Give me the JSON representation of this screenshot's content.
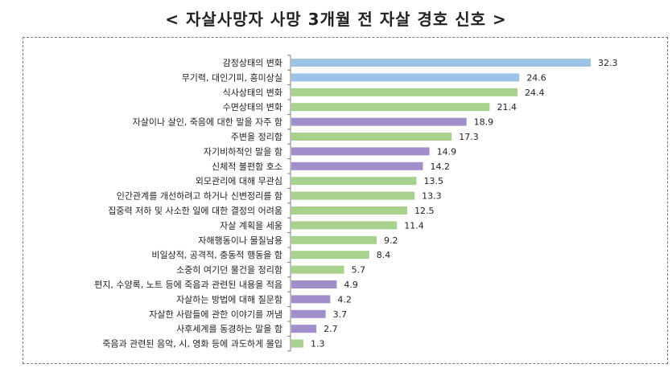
{
  "chart_data": {
    "type": "bar",
    "orientation": "horizontal",
    "title": "< 자살사망자 사망 3개월 전 자살 경호 신호 >",
    "xlabel": "",
    "ylabel": "",
    "xlim": [
      0,
      32.3
    ],
    "categories": [
      "감정상태의 변화",
      "무기력, 대인기피, 흥미상실",
      "식사상태의 변화",
      "수면상태의 변화",
      "자살이나 살인, 죽음에 대한 말을 자주 함",
      "주변을 정리함",
      "자기비하적인 말을 함",
      "신체적 불편함 호소",
      "외모관리에 대해 무관심",
      "인간관계를 개선하려고 하거나 신변정리를 함",
      "집중력 저하 및 사소한 일에 대한 결정의 어려움",
      "자살 계획을 세움",
      "자해행동이나 물질남용",
      "비일상적, 공격적, 충동적 행동을 함",
      "소중히 여기던 물건을 정리함",
      "편지, 수양록, 노트 등에 죽음과 관련된 내용을 적음",
      "자살하는 방법에 대해 질문함",
      "자살한 사람들에 관한 이야기를 꺼냄",
      "사후세계를 동경하는 말을 함",
      "죽음과 관련된 음악, 시, 영화 등에 과도하게 몰입"
    ],
    "values": [
      32.3,
      24.6,
      24.4,
      21.4,
      18.9,
      17.3,
      14.9,
      14.2,
      13.5,
      13.3,
      12.5,
      11.4,
      9.2,
      8.4,
      5.7,
      4.9,
      4.2,
      3.7,
      2.7,
      1.3
    ],
    "value_labels": [
      "32.3",
      "24.6",
      "24.4",
      "21.4",
      "18.9",
      "17.3",
      "14.9",
      "14.2",
      "13.5",
      "13.3",
      "12.5",
      "11.4",
      "9.2",
      "8.4",
      "5.7",
      "4.9",
      "4.2",
      "3.7",
      "2.7",
      "1.3"
    ],
    "color_group": [
      "blue",
      "blue",
      "green",
      "green",
      "purple",
      "green",
      "purple",
      "purple",
      "green",
      "green",
      "green",
      "green",
      "green",
      "green",
      "green",
      "purple",
      "purple",
      "purple",
      "purple",
      "green"
    ],
    "colors": {
      "blue": "#9dc3e6",
      "green": "#a9d18e",
      "purple": "#a18fcc",
      "axis": "#7f7f7f",
      "text": "#222222"
    }
  }
}
